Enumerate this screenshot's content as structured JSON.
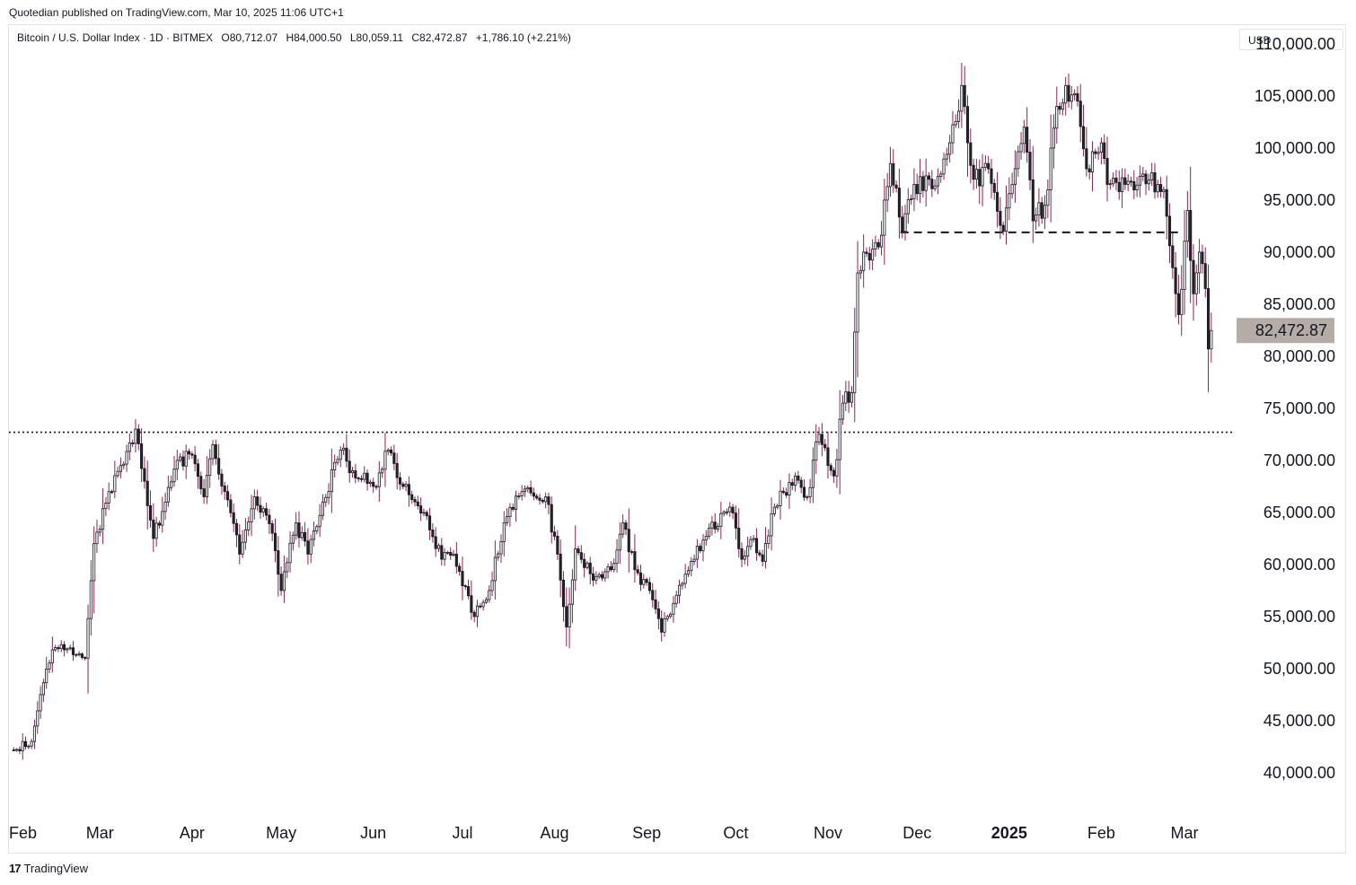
{
  "publisher": "Quotedian published on TradingView.com, Mar 10, 2025 11:06 UTC+1",
  "legend": {
    "symbol": "Bitcoin / U.S. Dollar Index · 1D · BITMEX",
    "open": "O80,712.07",
    "high": "H84,000.50",
    "low": "L80,059.11",
    "close": "C82,472.87",
    "change": "+1,786.10 (+2.21%)"
  },
  "currency": "USD",
  "footer": "TradingView",
  "colors": {
    "up": "#ffffff",
    "down": "#2a2226",
    "wick": "#8a2552",
    "border": "#131722",
    "tag": "#b5aca7"
  },
  "chart_data": {
    "type": "candlestick",
    "y_ticks": [
      "110,000.00",
      "105,000.00",
      "100,000.00",
      "95,000.00",
      "90,000.00",
      "85,000.00",
      "80,000.00",
      "75,000.00",
      "70,000.00",
      "65,000.00",
      "60,000.00",
      "55,000.00",
      "50,000.00",
      "45,000.00",
      "40,000.00"
    ],
    "y_values": [
      110000,
      105000,
      100000,
      95000,
      90000,
      85000,
      80000,
      75000,
      70000,
      65000,
      60000,
      55000,
      50000,
      45000,
      40000
    ],
    "x_ticks": [
      {
        "label": "Feb",
        "date": "2024-02-01"
      },
      {
        "label": "Mar",
        "date": "2024-03-01"
      },
      {
        "label": "Apr",
        "date": "2024-04-01"
      },
      {
        "label": "May",
        "date": "2024-05-01"
      },
      {
        "label": "Jun",
        "date": "2024-06-01"
      },
      {
        "label": "Jul",
        "date": "2024-07-01"
      },
      {
        "label": "Aug",
        "date": "2024-08-01"
      },
      {
        "label": "Sep",
        "date": "2024-09-01"
      },
      {
        "label": "Oct",
        "date": "2024-10-01"
      },
      {
        "label": "Nov",
        "date": "2024-11-01"
      },
      {
        "label": "Dec",
        "date": "2024-12-01"
      },
      {
        "label": "2025",
        "date": "2025-01-01",
        "bold": true
      },
      {
        "label": "Feb",
        "date": "2025-02-01"
      },
      {
        "label": "Mar",
        "date": "2025-03-01"
      }
    ],
    "start_date": "2024-01-31",
    "anchors": [
      [
        "2024-01-31",
        42200
      ],
      [
        "2024-02-07",
        43000
      ],
      [
        "2024-02-10",
        47500
      ],
      [
        "2024-02-14",
        51800
      ],
      [
        "2024-02-20",
        52000
      ],
      [
        "2024-02-25",
        51000
      ],
      [
        "2024-02-28",
        62000
      ],
      [
        "2024-03-04",
        67000
      ],
      [
        "2024-03-08",
        69500
      ],
      [
        "2024-03-13",
        73000
      ],
      [
        "2024-03-16",
        68000
      ],
      [
        "2024-03-19",
        62500
      ],
      [
        "2024-03-23",
        66000
      ],
      [
        "2024-03-27",
        70000
      ],
      [
        "2024-04-01",
        70500
      ],
      [
        "2024-04-05",
        66500
      ],
      [
        "2024-04-08",
        71500
      ],
      [
        "2024-04-12",
        67000
      ],
      [
        "2024-04-17",
        61000
      ],
      [
        "2024-04-22",
        66500
      ],
      [
        "2024-04-28",
        63000
      ],
      [
        "2024-05-01",
        57500
      ],
      [
        "2024-05-06",
        64000
      ],
      [
        "2024-05-10",
        61000
      ],
      [
        "2024-05-15",
        66000
      ],
      [
        "2024-05-21",
        71000
      ],
      [
        "2024-05-25",
        69000
      ],
      [
        "2024-06-01",
        67500
      ],
      [
        "2024-06-06",
        71000
      ],
      [
        "2024-06-11",
        67500
      ],
      [
        "2024-06-18",
        65000
      ],
      [
        "2024-06-24",
        60500
      ],
      [
        "2024-06-28",
        61000
      ],
      [
        "2024-07-05",
        55000
      ],
      [
        "2024-07-10",
        57500
      ],
      [
        "2024-07-15",
        64000
      ],
      [
        "2024-07-21",
        67000
      ],
      [
        "2024-07-29",
        66500
      ],
      [
        "2024-08-02",
        61000
      ],
      [
        "2024-08-05",
        54000
      ],
      [
        "2024-08-08",
        61500
      ],
      [
        "2024-08-14",
        58500
      ],
      [
        "2024-08-20",
        59500
      ],
      [
        "2024-08-24",
        64000
      ],
      [
        "2024-08-28",
        59500
      ],
      [
        "2024-09-02",
        57500
      ],
      [
        "2024-09-06",
        53500
      ],
      [
        "2024-09-12",
        58000
      ],
      [
        "2024-09-17",
        60500
      ],
      [
        "2024-09-22",
        63500
      ],
      [
        "2024-09-29",
        65500
      ],
      [
        "2024-10-03",
        60500
      ],
      [
        "2024-10-07",
        62500
      ],
      [
        "2024-10-10",
        60300
      ],
      [
        "2024-10-14",
        65500
      ],
      [
        "2024-10-21",
        68500
      ],
      [
        "2024-10-25",
        66500
      ],
      [
        "2024-10-29",
        72500
      ],
      [
        "2024-11-01",
        69500
      ],
      [
        "2024-11-03",
        68500
      ],
      [
        "2024-11-06",
        75500
      ],
      [
        "2024-11-09",
        76500
      ],
      [
        "2024-11-11",
        88000
      ],
      [
        "2024-11-13",
        90000
      ],
      [
        "2024-11-18",
        90500
      ],
      [
        "2024-11-22",
        98500
      ],
      [
        "2024-11-26",
        92000
      ],
      [
        "2024-11-30",
        96500
      ],
      [
        "2024-12-05",
        97000
      ],
      [
        "2024-12-09",
        97500
      ],
      [
        "2024-12-12",
        100500
      ],
      [
        "2024-12-16",
        106000
      ],
      [
        "2024-12-18",
        100500
      ],
      [
        "2024-12-20",
        97000
      ],
      [
        "2024-12-25",
        98000
      ],
      [
        "2024-12-30",
        92000
      ],
      [
        "2025-01-02",
        96500
      ],
      [
        "2025-01-06",
        102000
      ],
      [
        "2025-01-09",
        93000
      ],
      [
        "2025-01-13",
        94500
      ],
      [
        "2025-01-17",
        104000
      ],
      [
        "2025-01-20",
        106000
      ],
      [
        "2025-01-24",
        104500
      ],
      [
        "2025-01-27",
        98000
      ],
      [
        "2025-02-01",
        100500
      ],
      [
        "2025-02-03",
        96500
      ],
      [
        "2025-02-09",
        96500
      ],
      [
        "2025-02-15",
        97500
      ],
      [
        "2025-02-20",
        96500
      ],
      [
        "2025-02-22",
        96000
      ],
      [
        "2025-02-25",
        88500
      ],
      [
        "2025-02-27",
        84000
      ],
      [
        "2025-03-02",
        94000
      ],
      [
        "2025-03-04",
        86000
      ],
      [
        "2025-03-06",
        90000
      ],
      [
        "2025-03-08",
        86500
      ],
      [
        "2025-03-09",
        80700
      ],
      [
        "2025-03-10",
        82472.87
      ]
    ],
    "horizontal_lines": [
      {
        "style": "dotted",
        "value": 72700,
        "from": "2024-01-31",
        "to": "2025-04-08"
      },
      {
        "style": "dashed",
        "value": 91900,
        "from": "2024-11-26",
        "to": "2025-02-28"
      }
    ],
    "last_price": "82,472.87",
    "last_value": 82472.87,
    "y_range": [
      36200,
      111800
    ]
  }
}
